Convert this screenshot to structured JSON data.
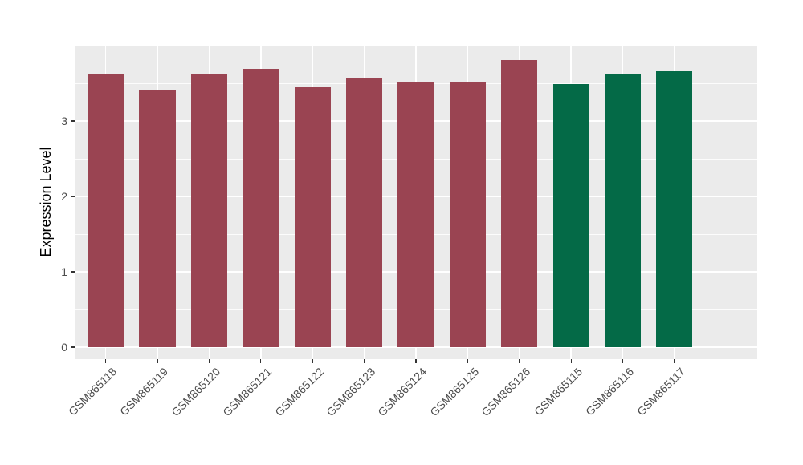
{
  "chart_data": {
    "type": "bar",
    "categories": [
      "GSM865118",
      "GSM865119",
      "GSM865120",
      "GSM865121",
      "GSM865122",
      "GSM865123",
      "GSM865124",
      "GSM865125",
      "GSM865126",
      "GSM865115",
      "GSM865116",
      "GSM865117"
    ],
    "values": [
      3.63,
      3.42,
      3.63,
      3.69,
      3.46,
      3.57,
      3.52,
      3.52,
      3.81,
      3.49,
      3.63,
      3.66
    ],
    "bar_groups": [
      "maroon",
      "maroon",
      "maroon",
      "maroon",
      "maroon",
      "maroon",
      "maroon",
      "maroon",
      "maroon",
      "green",
      "green",
      "green"
    ],
    "group_colors": {
      "maroon": "#9A4452",
      "green": "#046A47"
    },
    "xlabel": "",
    "ylabel": "Expression Level",
    "ylim": [
      -0.16,
      4.0
    ],
    "yticks": [
      0,
      1,
      2,
      3
    ],
    "minor_gridlines": [
      0.5,
      1.5,
      2.5,
      3.5
    ],
    "grid": "on",
    "legend": "none",
    "panel_background": "#EBEBEB",
    "gridline_color": "#FFFFFF",
    "axis_text_color": "#4D4D4D",
    "tick_mark_color": "#333333"
  }
}
